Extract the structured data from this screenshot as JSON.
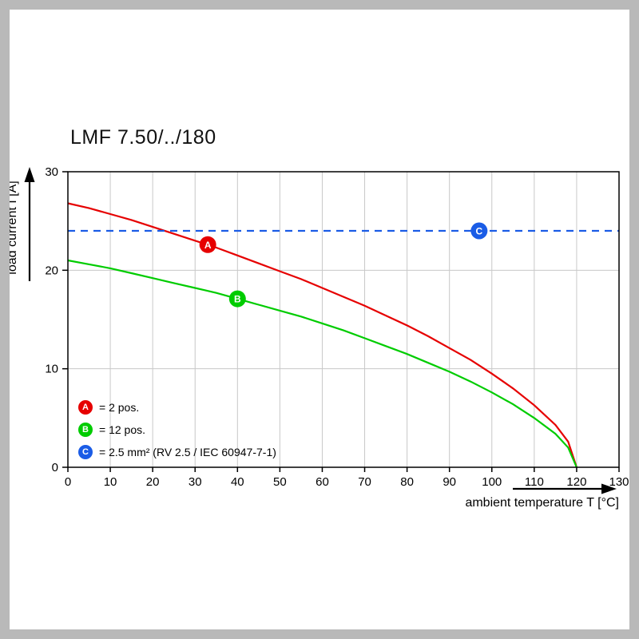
{
  "frame": {
    "border_color": "#b9b9b9"
  },
  "chart_data": {
    "type": "line",
    "title": "LMF 7.50/../180",
    "xlabel": "ambient temperature T [°C]",
    "ylabel": "load current I [A]",
    "xlim": [
      0,
      130
    ],
    "ylim": [
      0,
      30
    ],
    "xticks": [
      0,
      10,
      20,
      30,
      40,
      50,
      60,
      70,
      80,
      90,
      100,
      110,
      120,
      130
    ],
    "yticks": [
      0,
      10,
      20,
      30
    ],
    "grid_color": "#c8c8c8",
    "axis_color": "#000000",
    "series": [
      {
        "name": "A",
        "label": "= 2 pos.",
        "color": "#e60000",
        "style": "solid",
        "points": [
          [
            0,
            26.8
          ],
          [
            5,
            26.3
          ],
          [
            10,
            25.7
          ],
          [
            15,
            25.1
          ],
          [
            20,
            24.4
          ],
          [
            25,
            23.7
          ],
          [
            30,
            23.0
          ],
          [
            35,
            22.3
          ],
          [
            40,
            21.5
          ],
          [
            45,
            20.7
          ],
          [
            50,
            19.9
          ],
          [
            55,
            19.1
          ],
          [
            60,
            18.2
          ],
          [
            65,
            17.3
          ],
          [
            70,
            16.4
          ],
          [
            75,
            15.4
          ],
          [
            80,
            14.4
          ],
          [
            85,
            13.3
          ],
          [
            90,
            12.1
          ],
          [
            95,
            10.9
          ],
          [
            100,
            9.5
          ],
          [
            105,
            8.0
          ],
          [
            110,
            6.3
          ],
          [
            115,
            4.3
          ],
          [
            118,
            2.6
          ],
          [
            120,
            0
          ]
        ],
        "marker": {
          "x": 33,
          "y": 22.6
        }
      },
      {
        "name": "B",
        "label": "= 12 pos.",
        "color": "#00cc00",
        "style": "solid",
        "points": [
          [
            0,
            21.0
          ],
          [
            5,
            20.6
          ],
          [
            10,
            20.2
          ],
          [
            15,
            19.7
          ],
          [
            20,
            19.2
          ],
          [
            25,
            18.7
          ],
          [
            30,
            18.2
          ],
          [
            35,
            17.7
          ],
          [
            40,
            17.1
          ],
          [
            45,
            16.5
          ],
          [
            50,
            15.9
          ],
          [
            55,
            15.3
          ],
          [
            60,
            14.6
          ],
          [
            65,
            13.9
          ],
          [
            70,
            13.1
          ],
          [
            75,
            12.3
          ],
          [
            80,
            11.5
          ],
          [
            85,
            10.6
          ],
          [
            90,
            9.7
          ],
          [
            95,
            8.7
          ],
          [
            100,
            7.6
          ],
          [
            105,
            6.4
          ],
          [
            110,
            5.0
          ],
          [
            115,
            3.4
          ],
          [
            118,
            2.0
          ],
          [
            120,
            0
          ]
        ],
        "marker": {
          "x": 40,
          "y": 17.1
        }
      },
      {
        "name": "C",
        "label": "= 2.5 mm² (RV 2.5 / IEC 60947-7-1)",
        "color": "#1a5ce6",
        "style": "dashed",
        "points": [
          [
            0,
            24
          ],
          [
            130,
            24
          ]
        ],
        "marker": {
          "x": 97,
          "y": 24
        }
      }
    ]
  }
}
